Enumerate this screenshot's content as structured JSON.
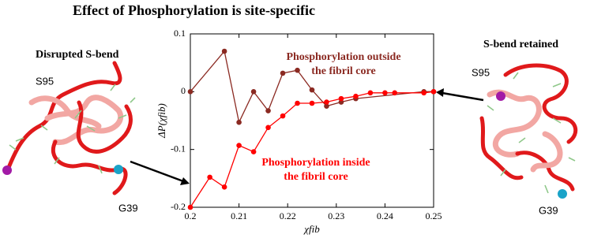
{
  "chart_data": {
    "type": "line",
    "title": "Effect of Phosphorylation is site-specific",
    "x_label": "χfib",
    "y_label": "ΔP(χfib)",
    "xlim": [
      0.2,
      0.25
    ],
    "xticks": [
      0.2,
      0.21,
      0.22,
      0.23,
      0.24,
      0.25
    ],
    "ylim": [
      -0.2,
      0.1
    ],
    "yticks": [
      -0.2,
      -0.1,
      0,
      0.1
    ],
    "series": [
      {
        "color": "#8b2a22",
        "x": [
          0.2,
          0.207,
          0.21,
          0.213,
          0.216,
          0.219,
          0.222,
          0.225,
          0.228,
          0.231,
          0.234,
          0.248,
          0.25
        ],
        "values": [
          0,
          0.07,
          -0.053,
          0,
          -0.033,
          0.032,
          0.037,
          0.003,
          -0.025,
          -0.018,
          -0.012,
          0,
          0
        ]
      },
      {
        "color": "#ff0000",
        "x": [
          0.2,
          0.204,
          0.207,
          0.21,
          0.213,
          0.216,
          0.219,
          0.222,
          0.225,
          0.228,
          0.231,
          0.234,
          0.237,
          0.24,
          0.242,
          0.248,
          0.25
        ],
        "values": [
          -0.2,
          -0.148,
          -0.165,
          -0.093,
          -0.104,
          -0.062,
          -0.042,
          -0.02,
          -0.02,
          -0.018,
          -0.012,
          -0.008,
          -0.002,
          -0.002,
          -0.002,
          -0.002,
          0
        ]
      }
    ],
    "annotations": [
      [
        "Phosphorylation outside",
        "the fibril core"
      ],
      [
        "Phosphorylation inside",
        "the fibril core"
      ]
    ]
  },
  "panels": [
    {
      "title": "Disrupted S-bend",
      "labels": [
        "S95",
        "G39"
      ]
    },
    {
      "title": "S-bend retained",
      "labels": [
        "S95",
        "G39"
      ]
    }
  ]
}
